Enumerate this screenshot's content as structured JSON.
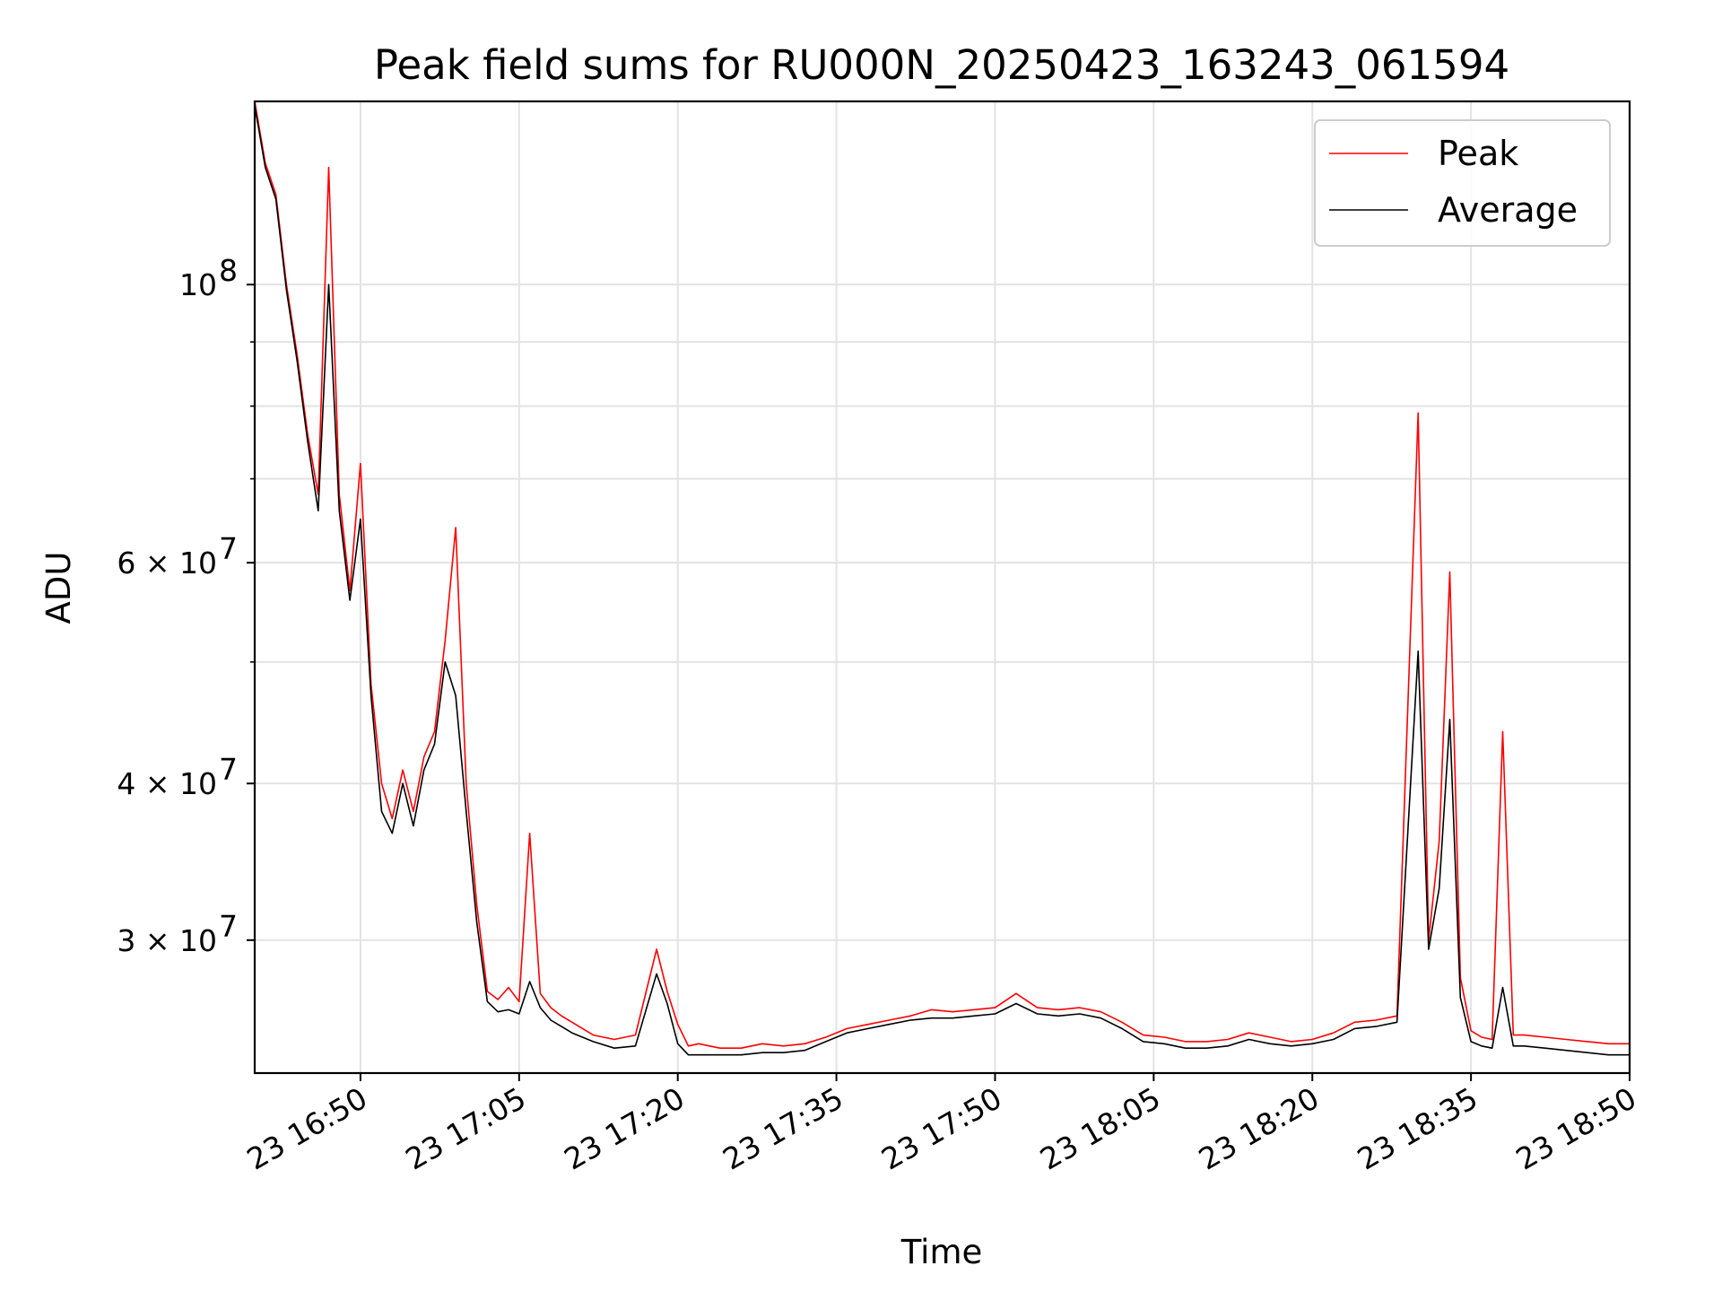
{
  "chart_data": {
    "type": "line",
    "title": "Peak field sums for RU000N_20250423_163243_061594",
    "xlabel": "Time",
    "ylabel": "ADU",
    "yscale": "log",
    "grid": true,
    "legend_position": "top-right",
    "xlim": [
      "2025-04-23 16:40",
      "2025-04-23 18:50"
    ],
    "ylim": [
      23500000,
      140000000
    ],
    "x_ticks": [
      "16:50",
      "17:05",
      "17:20",
      "17:35",
      "17:50",
      "18:05",
      "18:20",
      "18:35",
      "18:50"
    ],
    "x_tick_labels": [
      "23 16:50",
      "23 17:05",
      "23 17:20",
      "23 17:35",
      "23 17:50",
      "23 18:05",
      "23 18:20",
      "23 18:35",
      "23 18:50"
    ],
    "y_ticks": [
      {
        "value": 30000000,
        "mantissa": "3",
        "exp": "7"
      },
      {
        "value": 40000000,
        "mantissa": "4",
        "exp": "7"
      },
      {
        "value": 60000000,
        "mantissa": "6",
        "exp": "7"
      },
      {
        "value": 100000000,
        "mantissa": "",
        "exp": "8"
      }
    ],
    "y_minor_ticks": [
      50000000,
      70000000,
      80000000,
      90000000
    ],
    "series": [
      {
        "name": "Peak",
        "color": "#ff0000",
        "x": [
          "16:40",
          "16:41",
          "16:42",
          "16:43",
          "16:44",
          "16:45",
          "16:46",
          "16:47",
          "16:48",
          "16:49",
          "16:50",
          "16:51",
          "16:52",
          "16:53",
          "16:54",
          "16:55",
          "16:56",
          "16:57",
          "16:58",
          "16:59",
          "17:00",
          "17:01",
          "17:02",
          "17:03",
          "17:04",
          "17:05",
          "17:06",
          "17:07",
          "17:08",
          "17:09",
          "17:10",
          "17:12",
          "17:14",
          "17:16",
          "17:18",
          "17:19",
          "17:20",
          "17:21",
          "17:22",
          "17:23",
          "17:24",
          "17:26",
          "17:28",
          "17:30",
          "17:32",
          "17:34",
          "17:36",
          "17:38",
          "17:40",
          "17:42",
          "17:44",
          "17:46",
          "17:48",
          "17:50",
          "17:52",
          "17:54",
          "17:56",
          "17:58",
          "18:00",
          "18:02",
          "18:04",
          "18:06",
          "18:08",
          "18:10",
          "18:12",
          "18:14",
          "18:16",
          "18:18",
          "18:20",
          "18:22",
          "18:24",
          "18:26",
          "18:28",
          "18:30",
          "18:31",
          "18:32",
          "18:33",
          "18:34",
          "18:35",
          "18:36",
          "18:37",
          "18:38",
          "18:39",
          "18:40",
          "18:42",
          "18:44",
          "18:46",
          "18:48",
          "18:50"
        ],
        "values": [
          140000000,
          125000000,
          118000000,
          100000000,
          88000000,
          76000000,
          68000000,
          124000000,
          68000000,
          57000000,
          72000000,
          48000000,
          40000000,
          37500000,
          41000000,
          38000000,
          42000000,
          44000000,
          52000000,
          64000000,
          40000000,
          32000000,
          27300000,
          26900000,
          27500000,
          26800000,
          36500000,
          27200000,
          26500000,
          26100000,
          25800000,
          25200000,
          25000000,
          25200000,
          29500000,
          27300000,
          25700000,
          24700000,
          24800000,
          24700000,
          24600000,
          24600000,
          24800000,
          24700000,
          24800000,
          25100000,
          25500000,
          25700000,
          25900000,
          26100000,
          26400000,
          26300000,
          26400000,
          26500000,
          27200000,
          26500000,
          26400000,
          26500000,
          26300000,
          25800000,
          25200000,
          25100000,
          24900000,
          24900000,
          25000000,
          25300000,
          25100000,
          24900000,
          25000000,
          25300000,
          25800000,
          25900000,
          26100000,
          79000000,
          30000000,
          36000000,
          59000000,
          28000000,
          25400000,
          25100000,
          25000000,
          44000000,
          25200000,
          25200000,
          25100000,
          25000000,
          24900000,
          24800000,
          24800000
        ]
      },
      {
        "name": "Average",
        "color": "#000000",
        "x": [
          "16:40",
          "16:41",
          "16:42",
          "16:43",
          "16:44",
          "16:45",
          "16:46",
          "16:47",
          "16:48",
          "16:49",
          "16:50",
          "16:51",
          "16:52",
          "16:53",
          "16:54",
          "16:55",
          "16:56",
          "16:57",
          "16:58",
          "16:59",
          "17:00",
          "17:01",
          "17:02",
          "17:03",
          "17:04",
          "17:05",
          "17:06",
          "17:07",
          "17:08",
          "17:09",
          "17:10",
          "17:12",
          "17:14",
          "17:16",
          "17:18",
          "17:19",
          "17:20",
          "17:21",
          "17:22",
          "17:23",
          "17:24",
          "17:26",
          "17:28",
          "17:30",
          "17:32",
          "17:34",
          "17:36",
          "17:38",
          "17:40",
          "17:42",
          "17:44",
          "17:46",
          "17:48",
          "17:50",
          "17:52",
          "17:54",
          "17:56",
          "17:58",
          "18:00",
          "18:02",
          "18:04",
          "18:06",
          "18:08",
          "18:10",
          "18:12",
          "18:14",
          "18:16",
          "18:18",
          "18:20",
          "18:22",
          "18:24",
          "18:26",
          "18:28",
          "18:30",
          "18:31",
          "18:32",
          "18:33",
          "18:34",
          "18:35",
          "18:36",
          "18:37",
          "18:38",
          "18:39",
          "18:40",
          "18:42",
          "18:44",
          "18:46",
          "18:48",
          "18:50"
        ],
        "values": [
          139000000,
          124000000,
          117000000,
          99000000,
          87000000,
          75000000,
          66000000,
          100000000,
          66000000,
          56000000,
          65000000,
          47000000,
          38000000,
          36500000,
          40000000,
          37000000,
          41000000,
          43000000,
          50000000,
          47000000,
          38000000,
          31000000,
          26800000,
          26300000,
          26400000,
          26200000,
          27800000,
          26500000,
          25900000,
          25600000,
          25300000,
          24900000,
          24600000,
          24700000,
          28200000,
          26700000,
          24800000,
          24300000,
          24300000,
          24300000,
          24300000,
          24300000,
          24400000,
          24400000,
          24500000,
          24900000,
          25300000,
          25500000,
          25700000,
          25900000,
          26000000,
          26000000,
          26100000,
          26200000,
          26700000,
          26200000,
          26100000,
          26200000,
          26000000,
          25500000,
          24900000,
          24800000,
          24600000,
          24600000,
          24700000,
          25000000,
          24800000,
          24700000,
          24800000,
          25000000,
          25500000,
          25600000,
          25800000,
          51000000,
          29500000,
          33000000,
          45000000,
          27000000,
          24900000,
          24700000,
          24600000,
          27500000,
          24700000,
          24700000,
          24600000,
          24500000,
          24400000,
          24300000,
          24300000
        ]
      }
    ]
  }
}
